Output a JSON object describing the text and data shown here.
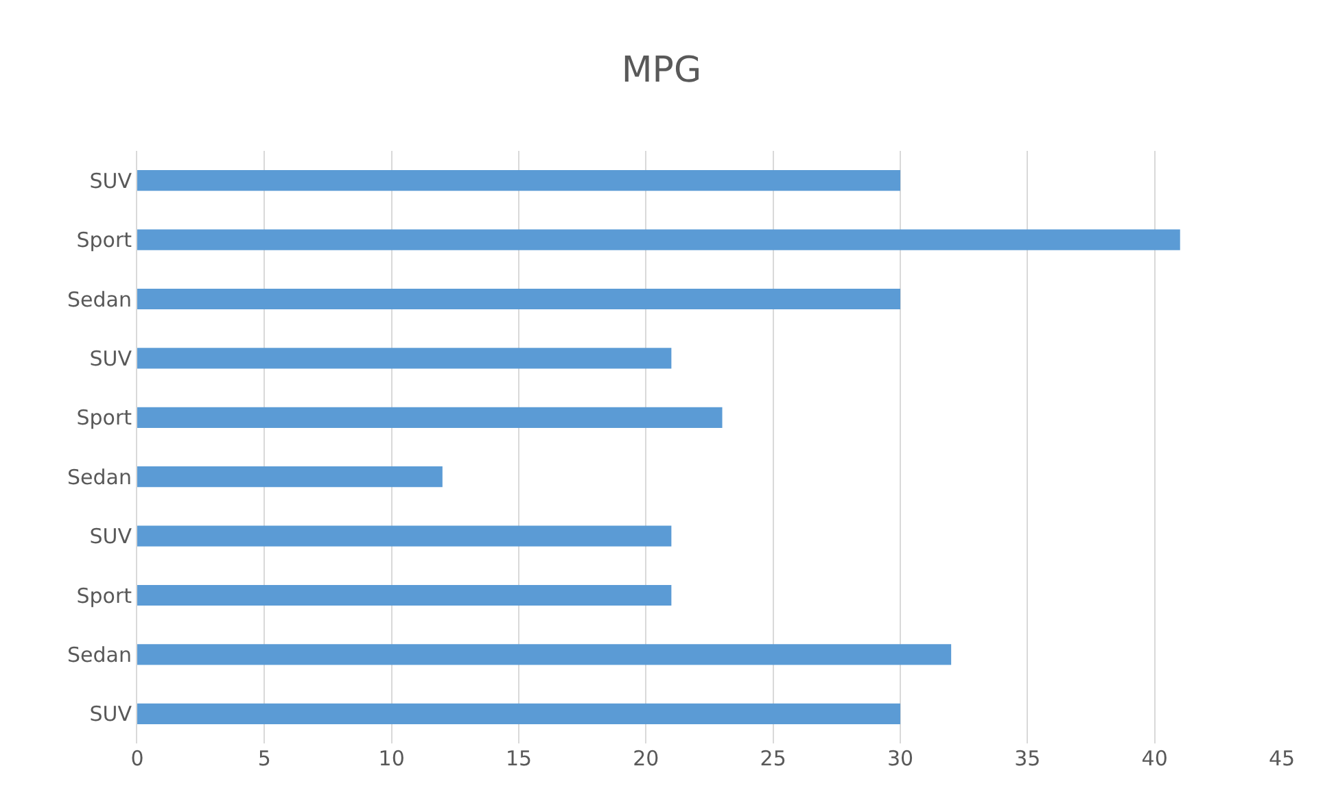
{
  "chart_data": {
    "type": "bar",
    "orientation": "horizontal",
    "title": "MPG",
    "categories": [
      "SUV",
      "Sport",
      "Sedan",
      "SUV",
      "Sport",
      "Sedan",
      "SUV",
      "Sport",
      "Sedan",
      "SUV"
    ],
    "values": [
      30,
      41,
      30,
      21,
      23,
      12,
      21,
      21,
      32,
      30
    ],
    "color": "#5b9bd5",
    "xlim": [
      0,
      45
    ],
    "xticks": [
      0,
      5,
      10,
      15,
      20,
      25,
      30,
      35,
      40,
      45
    ],
    "grid": "x"
  }
}
